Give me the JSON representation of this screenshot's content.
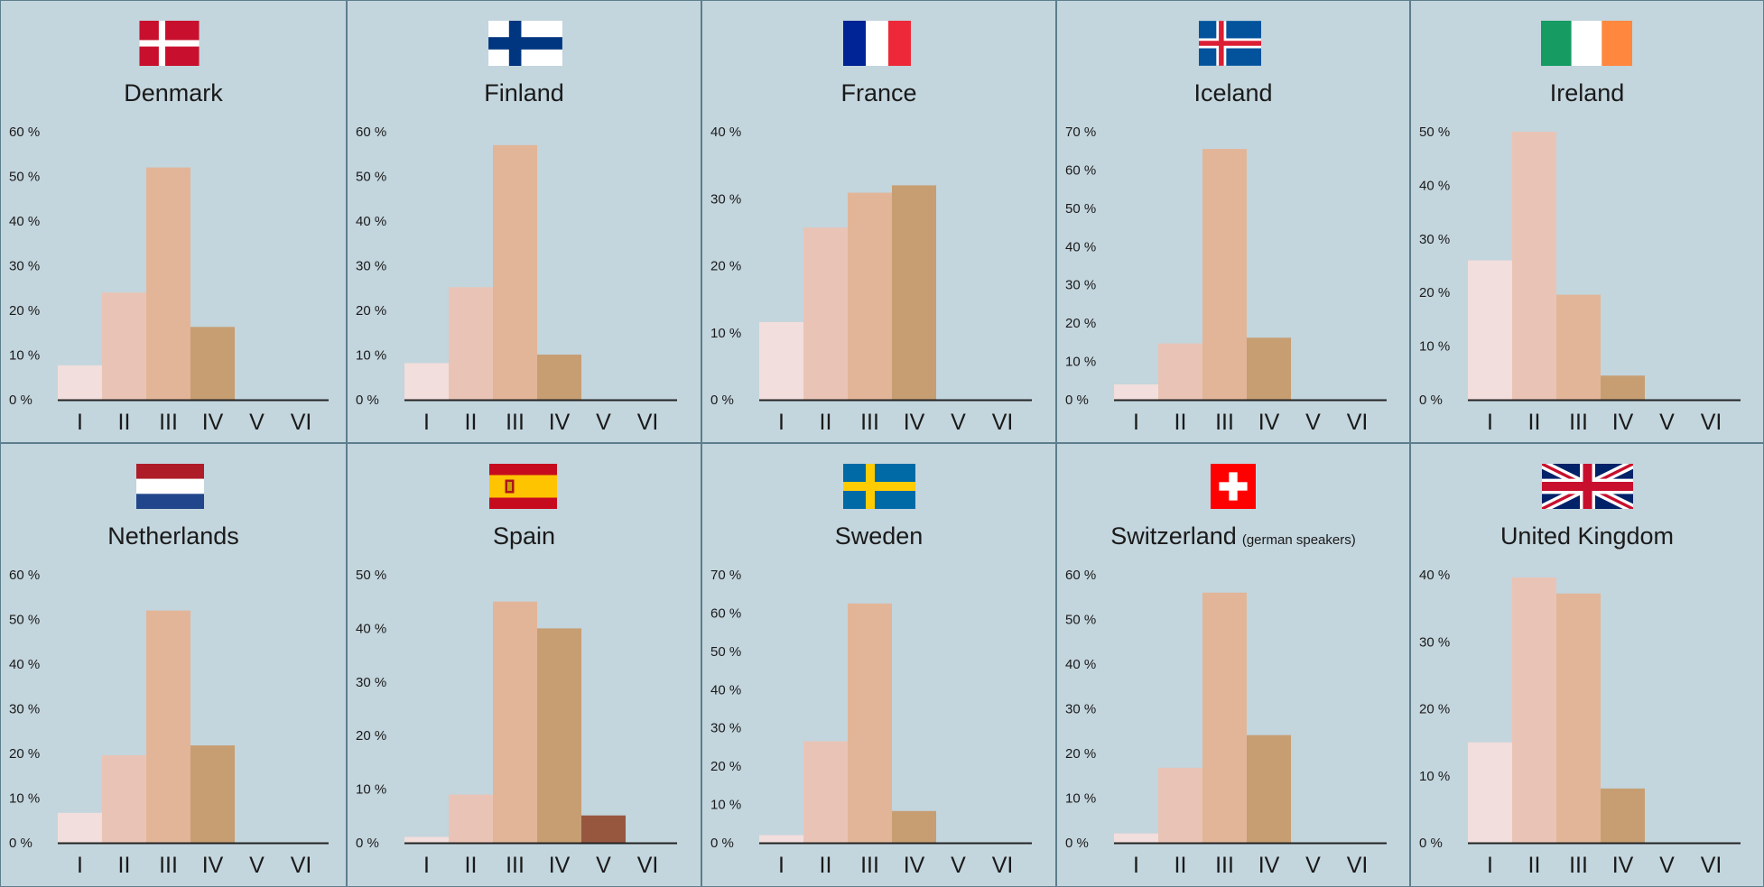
{
  "colors": {
    "background": "#c3d5dd",
    "border": "#5d7e8c",
    "bars": [
      "#f2dedc",
      "#e9c4b6",
      "#e2b598",
      "#c69e72",
      "#97573f",
      "#6b3b2a"
    ],
    "axis": "#222222"
  },
  "chart_data": [
    {
      "type": "bar",
      "title": "Denmark",
      "subtitle": "",
      "flag": "denmark-flag",
      "categories": [
        "I",
        "II",
        "III",
        "IV",
        "V",
        "VI"
      ],
      "values": [
        7.7,
        24,
        52,
        16.3,
        0,
        0
      ],
      "ylim": [
        0,
        60
      ],
      "ytick_labels": [
        "0 %",
        "10 %",
        "20 %",
        "30 %",
        "40 %",
        "50 %",
        "60 %"
      ],
      "yticks": [
        0,
        10,
        20,
        30,
        40,
        50,
        60
      ],
      "grid": false,
      "legend": "none"
    },
    {
      "type": "bar",
      "title": "Finland",
      "subtitle": "",
      "flag": "finland-flag",
      "categories": [
        "I",
        "II",
        "III",
        "IV",
        "V",
        "VI"
      ],
      "values": [
        8.2,
        25.2,
        57,
        10.1,
        0,
        0
      ],
      "ylim": [
        0,
        60
      ],
      "ytick_labels": [
        "0 %",
        "10 %",
        "20 %",
        "30 %",
        "40 %",
        "50 %",
        "60 %"
      ],
      "yticks": [
        0,
        10,
        20,
        30,
        40,
        50,
        60
      ],
      "grid": false,
      "legend": "none"
    },
    {
      "type": "bar",
      "title": "France",
      "subtitle": "",
      "flag": "france-flag",
      "categories": [
        "I",
        "II",
        "III",
        "IV",
        "V",
        "VI"
      ],
      "values": [
        11.6,
        25.7,
        30.9,
        32,
        0,
        0
      ],
      "ylim": [
        0,
        40
      ],
      "ytick_labels": [
        "0 %",
        "10 %",
        "20 %",
        "30 %",
        "40 %"
      ],
      "yticks": [
        0,
        10,
        20,
        30,
        40
      ],
      "grid": false,
      "legend": "none"
    },
    {
      "type": "bar",
      "title": "Iceland",
      "subtitle": "",
      "flag": "iceland-flag",
      "categories": [
        "I",
        "II",
        "III",
        "IV",
        "V",
        "VI"
      ],
      "values": [
        4,
        14.7,
        65.5,
        16.2,
        0,
        0
      ],
      "ylim": [
        0,
        70
      ],
      "ytick_labels": [
        "0 %",
        "10 %",
        "20 %",
        "30 %",
        "40 %",
        "50 %",
        "60 %",
        "70 %"
      ],
      "yticks": [
        0,
        10,
        20,
        30,
        40,
        50,
        60,
        70
      ],
      "grid": false,
      "legend": "none"
    },
    {
      "type": "bar",
      "title": "Ireland",
      "subtitle": "",
      "flag": "ireland-flag",
      "categories": [
        "I",
        "II",
        "III",
        "IV",
        "V",
        "VI"
      ],
      "values": [
        26,
        50,
        19.6,
        4.5,
        0,
        0
      ],
      "ylim": [
        0,
        50
      ],
      "ytick_labels": [
        "0 %",
        "10 %",
        "20 %",
        "30 %",
        "40 %",
        "50 %"
      ],
      "yticks": [
        0,
        10,
        20,
        30,
        40,
        50
      ],
      "grid": false,
      "legend": "none"
    },
    {
      "type": "bar",
      "title": "Netherlands",
      "subtitle": "",
      "flag": "netherlands-flag",
      "categories": [
        "I",
        "II",
        "III",
        "IV",
        "V",
        "VI"
      ],
      "values": [
        6.7,
        19.6,
        52,
        21.8,
        0,
        0
      ],
      "ylim": [
        0,
        60
      ],
      "ytick_labels": [
        "0 %",
        "10 %",
        "20 %",
        "30 %",
        "40 %",
        "50 %",
        "60 %"
      ],
      "yticks": [
        0,
        10,
        20,
        30,
        40,
        50,
        60
      ],
      "grid": false,
      "legend": "none"
    },
    {
      "type": "bar",
      "title": "Spain",
      "subtitle": "",
      "flag": "spain-flag",
      "categories": [
        "I",
        "II",
        "III",
        "IV",
        "V",
        "VI"
      ],
      "values": [
        1.1,
        9,
        45,
        40,
        5.1,
        0
      ],
      "ylim": [
        0,
        50
      ],
      "ytick_labels": [
        "0 %",
        "10 %",
        "20 %",
        "30 %",
        "40 %",
        "50 %"
      ],
      "yticks": [
        0,
        10,
        20,
        30,
        40,
        50
      ],
      "grid": false,
      "legend": "none"
    },
    {
      "type": "bar",
      "title": "Sweden",
      "subtitle": "",
      "flag": "sweden-flag",
      "categories": [
        "I",
        "II",
        "III",
        "IV",
        "V",
        "VI"
      ],
      "values": [
        2,
        26.5,
        62.5,
        8.3,
        0,
        0
      ],
      "ylim": [
        0,
        70
      ],
      "ytick_labels": [
        "0 %",
        "10 %",
        "20 %",
        "30 %",
        "40 %",
        "50 %",
        "60 %",
        "70 %"
      ],
      "yticks": [
        0,
        10,
        20,
        30,
        40,
        50,
        60,
        70
      ],
      "grid": false,
      "legend": "none"
    },
    {
      "type": "bar",
      "title": "Switzerland",
      "subtitle": "(german speakers)",
      "flag": "switzerland-flag",
      "categories": [
        "I",
        "II",
        "III",
        "IV",
        "V",
        "VI"
      ],
      "values": [
        2.1,
        16.8,
        56,
        24.1,
        0,
        0
      ],
      "ylim": [
        0,
        60
      ],
      "ytick_labels": [
        "0 %",
        "10 %",
        "20 %",
        "30 %",
        "40 %",
        "50 %",
        "60 %"
      ],
      "yticks": [
        0,
        10,
        20,
        30,
        40,
        50,
        60
      ],
      "grid": false,
      "legend": "none"
    },
    {
      "type": "bar",
      "title": "United Kingdom",
      "subtitle": "",
      "flag": "united-kingdom-flag",
      "categories": [
        "I",
        "II",
        "III",
        "IV",
        "V",
        "VI"
      ],
      "values": [
        15,
        39.6,
        37.2,
        8.1,
        0,
        0
      ],
      "ylim": [
        0,
        40
      ],
      "ytick_labels": [
        "0 %",
        "10 %",
        "20 %",
        "30 %",
        "40 %"
      ],
      "yticks": [
        0,
        10,
        20,
        30,
        40
      ],
      "grid": false,
      "legend": "none"
    }
  ]
}
